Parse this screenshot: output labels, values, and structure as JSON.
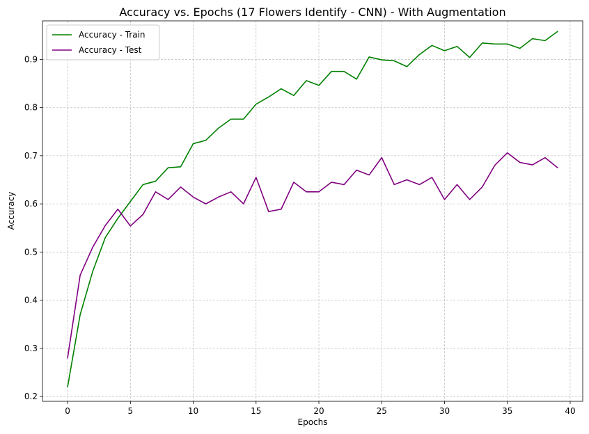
{
  "chart_data": {
    "type": "line",
    "title": "Accuracy vs. Epochs (17 Flowers Identify - CNN) - With Augmentation",
    "xlabel": "Epochs",
    "ylabel": "Accuracy",
    "xlim": [
      -2,
      41.0
    ],
    "ylim": [
      0.19,
      0.98
    ],
    "xticks": [
      0,
      5,
      10,
      15,
      20,
      25,
      30,
      35,
      40
    ],
    "yticks": [
      0.2,
      0.3,
      0.4,
      0.5,
      0.6,
      0.7,
      0.8,
      0.9
    ],
    "grid": true,
    "legend_position": "top-left",
    "x": [
      0,
      1,
      2,
      3,
      4,
      5,
      6,
      7,
      8,
      9,
      10,
      11,
      12,
      13,
      14,
      15,
      16,
      17,
      18,
      19,
      20,
      21,
      22,
      23,
      24,
      25,
      26,
      27,
      28,
      29,
      30,
      31,
      32,
      33,
      34,
      35,
      36,
      37,
      38,
      39
    ],
    "series": [
      {
        "name": "Accuracy - Train",
        "color": "#008000",
        "values": [
          0.22,
          0.37,
          0.46,
          0.53,
          0.57,
          0.605,
          0.64,
          0.647,
          0.675,
          0.677,
          0.725,
          0.732,
          0.757,
          0.776,
          0.776,
          0.807,
          0.822,
          0.839,
          0.825,
          0.856,
          0.846,
          0.875,
          0.875,
          0.859,
          0.905,
          0.899,
          0.897,
          0.885,
          0.91,
          0.929,
          0.918,
          0.927,
          0.904,
          0.934,
          0.932,
          0.932,
          0.923,
          0.943,
          0.939,
          0.958
        ]
      },
      {
        "name": "Accuracy - Test",
        "color": "#800080",
        "values": [
          0.28,
          0.452,
          0.51,
          0.555,
          0.589,
          0.554,
          0.578,
          0.625,
          0.609,
          0.635,
          0.614,
          0.6,
          0.614,
          0.625,
          0.6,
          0.655,
          0.584,
          0.589,
          0.645,
          0.625,
          0.625,
          0.645,
          0.64,
          0.67,
          0.66,
          0.696,
          0.64,
          0.65,
          0.64,
          0.655,
          0.609,
          0.64,
          0.609,
          0.635,
          0.68,
          0.706,
          0.686,
          0.681,
          0.696,
          0.675
        ]
      }
    ]
  }
}
